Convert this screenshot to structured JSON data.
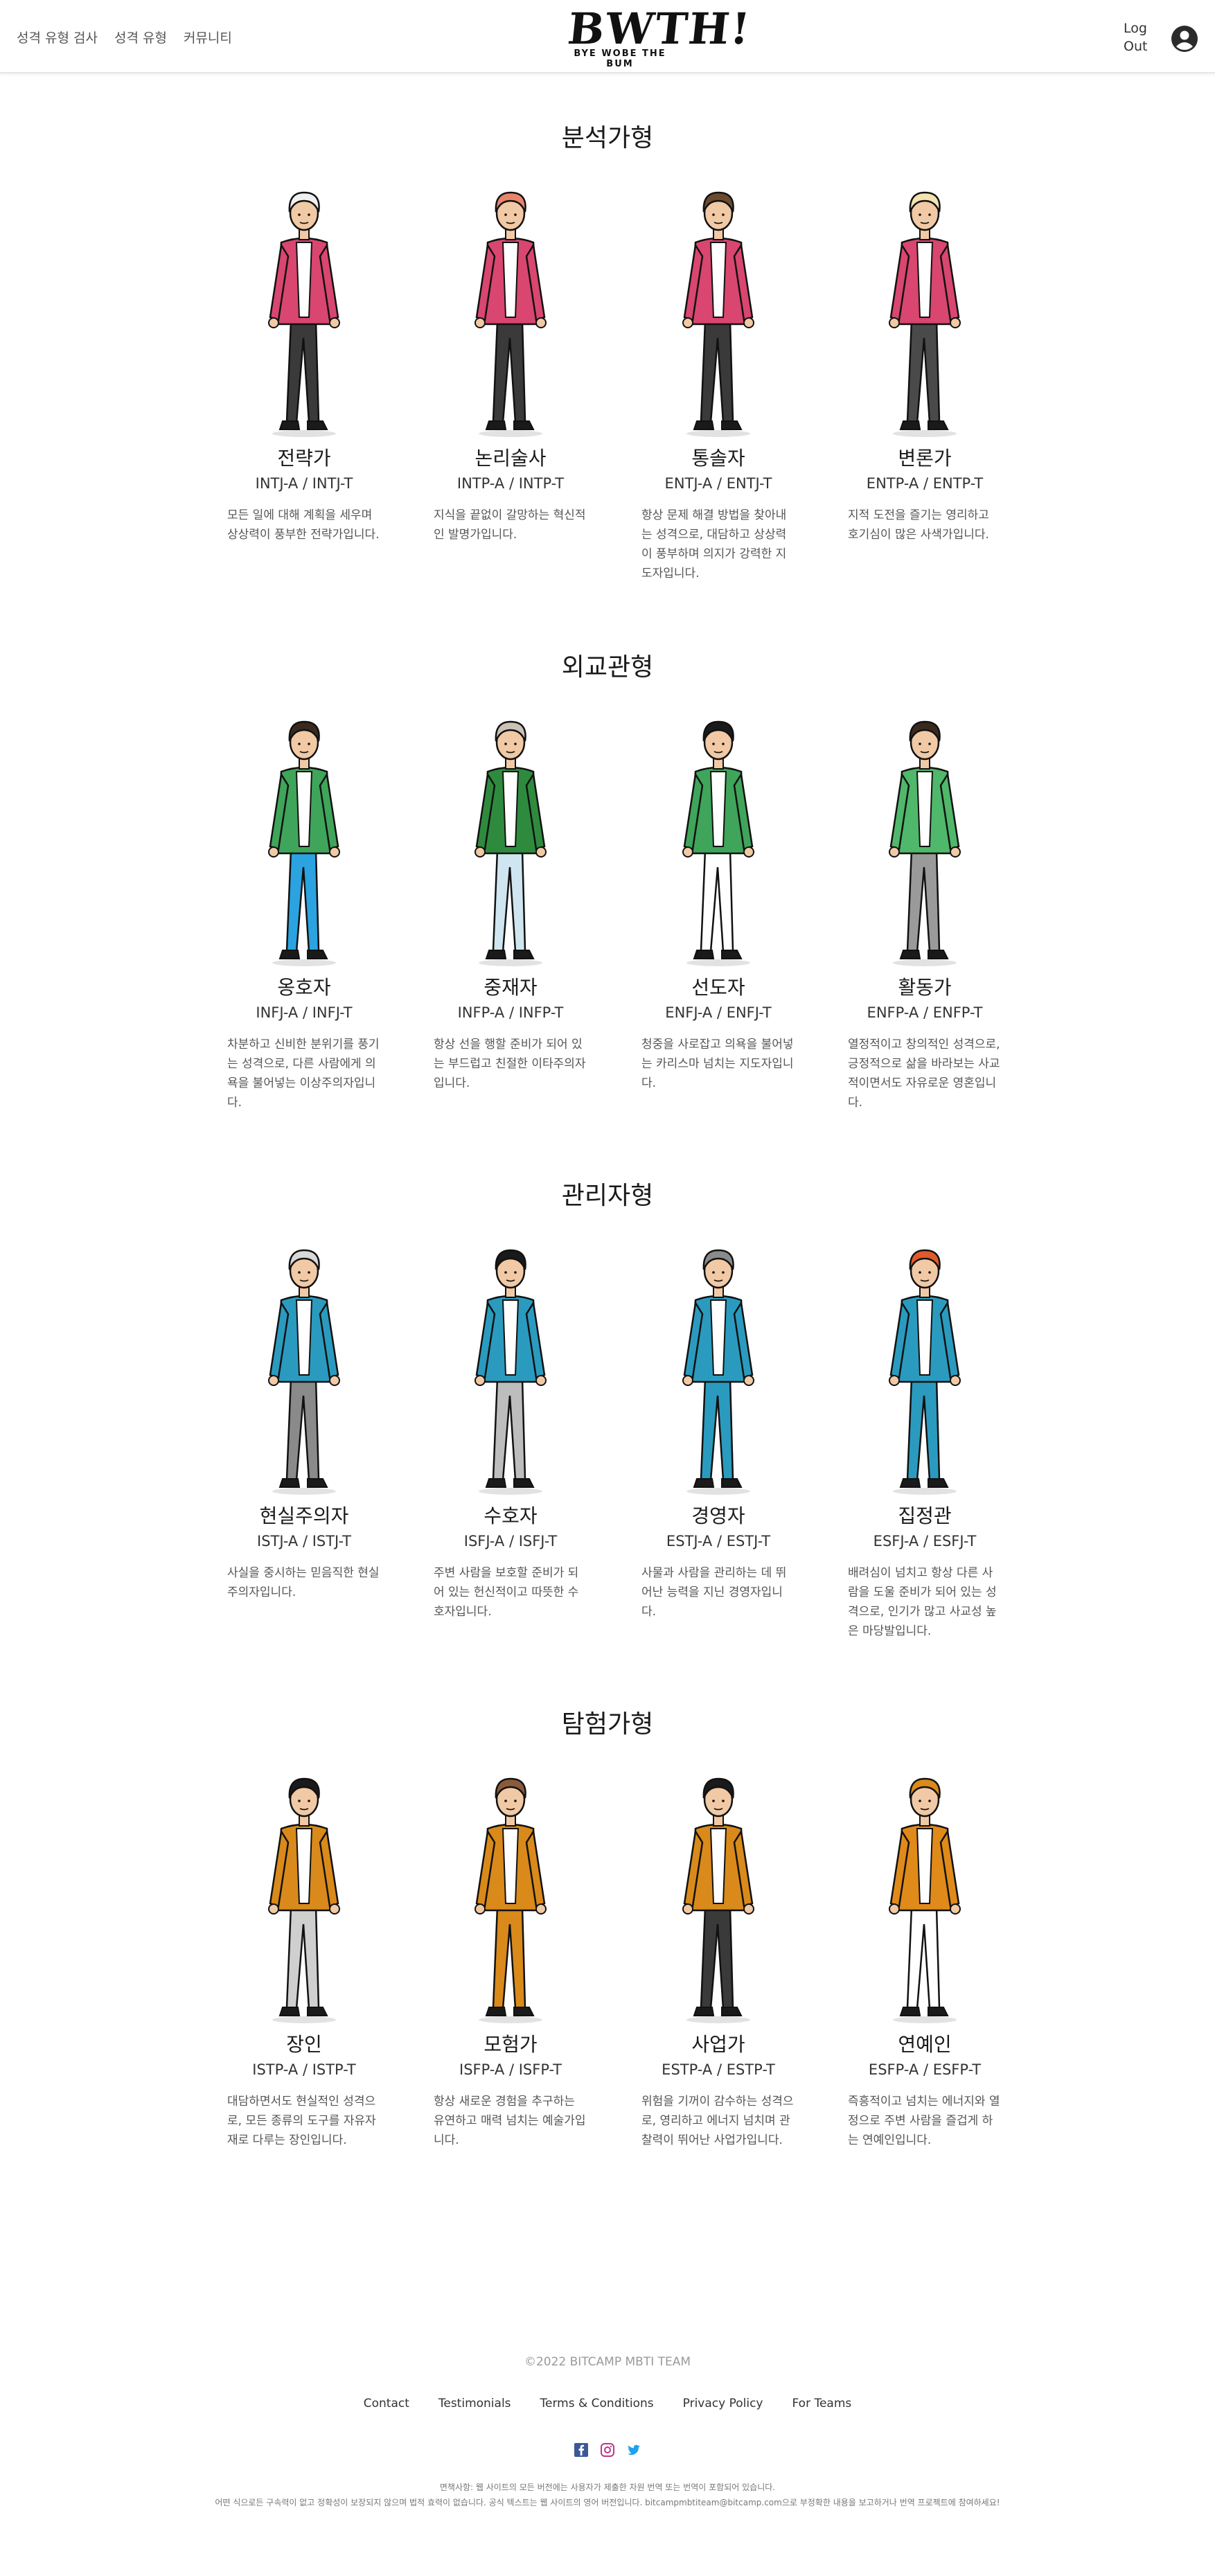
{
  "header": {
    "nav": [
      "성격 유형 검사",
      "성격 유형",
      "커뮤니티"
    ],
    "logo_main": "BWTH!",
    "logo_sub": "BYE WOBE THE BUM",
    "logout": "Log Out",
    "user_icon": "user-circle-icon"
  },
  "sections": [
    {
      "title": "분석가형",
      "cards": [
        {
          "name": "전략가",
          "code": "INTJ-A / INTJ-T",
          "desc": "모든 일에 대해 계획을 세우며 상상력이 풍부한 전략가입니다."
        },
        {
          "name": "논리술사",
          "code": "INTP-A / INTP-T",
          "desc": "지식을 끝없이 갈망하는 혁신적인 발명가입니다."
        },
        {
          "name": "통솔자",
          "code": "ENTJ-A / ENTJ-T",
          "desc": "항상 문제 해결 방법을 찾아내는 성격으로, 대담하고 상상력이 풍부하며 의지가 강력한 지도자입니다."
        },
        {
          "name": "변론가",
          "code": "ENTP-A / ENTP-T",
          "desc": "지적 도전을 즐기는 영리하고 호기심이 많은 사색가입니다."
        }
      ]
    },
    {
      "title": "외교관형",
      "cards": [
        {
          "name": "옹호자",
          "code": "INFJ-A / INFJ-T",
          "desc": "차분하고 신비한 분위기를 풍기는 성격으로, 다른 사람에게 의욕을 불어넣는 이상주의자입니다."
        },
        {
          "name": "중재자",
          "code": "INFP-A / INFP-T",
          "desc": "항상 선을 행할 준비가 되어 있는 부드럽고 친절한 이타주의자입니다."
        },
        {
          "name": "선도자",
          "code": "ENFJ-A / ENFJ-T",
          "desc": "청중을 사로잡고 의욕을 불어넣는 카리스마 넘치는 지도자입니다."
        },
        {
          "name": "활동가",
          "code": "ENFP-A / ENFP-T",
          "desc": "열정적이고 창의적인 성격으로, 긍정적으로 삶을 바라보는 사교적이면서도 자유로운 영혼입니다."
        }
      ]
    },
    {
      "title": "관리자형",
      "cards": [
        {
          "name": "현실주의자",
          "code": "ISTJ-A / ISTJ-T",
          "desc": "사실을 중시하는 믿음직한 현실주의자입니다."
        },
        {
          "name": "수호자",
          "code": "ISFJ-A / ISFJ-T",
          "desc": "주변 사람을 보호할 준비가 되어 있는 헌신적이고 따뜻한 수호자입니다."
        },
        {
          "name": "경영자",
          "code": "ESTJ-A / ESTJ-T",
          "desc": "사물과 사람을 관리하는 데 뛰어난 능력을 지닌 경영자입니다."
        },
        {
          "name": "집정관",
          "code": "ESFJ-A / ESFJ-T",
          "desc": "배려심이 넘치고 항상 다른 사람을 도울 준비가 되어 있는 성격으로, 인기가 많고 사교성 높은 마당발입니다."
        }
      ]
    },
    {
      "title": "탐험가형",
      "cards": [
        {
          "name": "장인",
          "code": "ISTP-A / ISTP-T",
          "desc": "대담하면서도 현실적인 성격으로, 모든 종류의 도구를 자유자재로 다루는 장인입니다."
        },
        {
          "name": "모험가",
          "code": "ISFP-A / ISFP-T",
          "desc": "항상 새로운 경험을 추구하는 유연하고 매력 넘치는 예술가입니다."
        },
        {
          "name": "사업가",
          "code": "ESTP-A / ESTP-T",
          "desc": "위험을 기꺼이 감수하는 성격으로, 영리하고 에너지 넘치며 관찰력이 뛰어난 사업가입니다."
        },
        {
          "name": "연예인",
          "code": "ESFP-A / ESFP-T",
          "desc": "즉흥적이고 넘치는 에너지와 열정으로 주변 사람을 즐겁게 하는 연예인입니다."
        }
      ]
    }
  ],
  "figure_colors": [
    [
      "#d9466f",
      "#3a3a3a",
      "#f0f0f0"
    ],
    [
      "#d9466f",
      "#3a3a3a",
      "#e8846a"
    ],
    [
      "#d9466f",
      "#3a3a3a",
      "#6b4a2f"
    ],
    [
      "#d9466f",
      "#4a4a4a",
      "#f3e3b0"
    ],
    [
      "#3fa55a",
      "#2aa3e0",
      "#3a2a1e"
    ],
    [
      "#2e8b3e",
      "#cfe6f0",
      "#c9c2b5"
    ],
    [
      "#3fa55a",
      "#ffffff",
      "#1a1a1a"
    ],
    [
      "#4fb86a",
      "#9a9a9a",
      "#3a2a1e"
    ],
    [
      "#2a9bbf",
      "#8a8a8a",
      "#d8d8d8"
    ],
    [
      "#2a9bbf",
      "#bdbdbd",
      "#1a1a1a"
    ],
    [
      "#2a9bbf",
      "#2a9bbf",
      "#8a8a8a"
    ],
    [
      "#2a9bbf",
      "#2a9bbf",
      "#e05a2a"
    ],
    [
      "#d98a1a",
      "#cfcfcf",
      "#1a1a1a"
    ],
    [
      "#d98a1a",
      "#d98a1a",
      "#8a5a3a"
    ],
    [
      "#d98a1a",
      "#3a3a3a",
      "#1a1a1a"
    ],
    [
      "#e08a1a",
      "#ffffff",
      "#d98a1a"
    ]
  ],
  "footer": {
    "copyright": "©2022 BITCAMP MBTI TEAM",
    "links": [
      "Contact",
      "Testimonials",
      "Terms & Conditions",
      "Privacy Policy",
      "For Teams"
    ],
    "social_icons": [
      "facebook-icon",
      "instagram-icon",
      "twitter-icon"
    ],
    "disclaimer_1": "면책사항: 웹 사이트의 모든 버전에는 사용자가 제출한 자원 번역 또는 번역이 포함되어 있습니다.",
    "disclaimer_2": "어떤 식으로든 구속력이 없고 정확성이 보장되지 않으며 법적 효력이 없습니다. 공식 텍스트는 웹 사이트의 영어 버전입니다. bitcampmbtiteam@bitcamp.com으로 부정확한 내용을 보고하거나 번역 프로젝트에 참여하세요!"
  }
}
